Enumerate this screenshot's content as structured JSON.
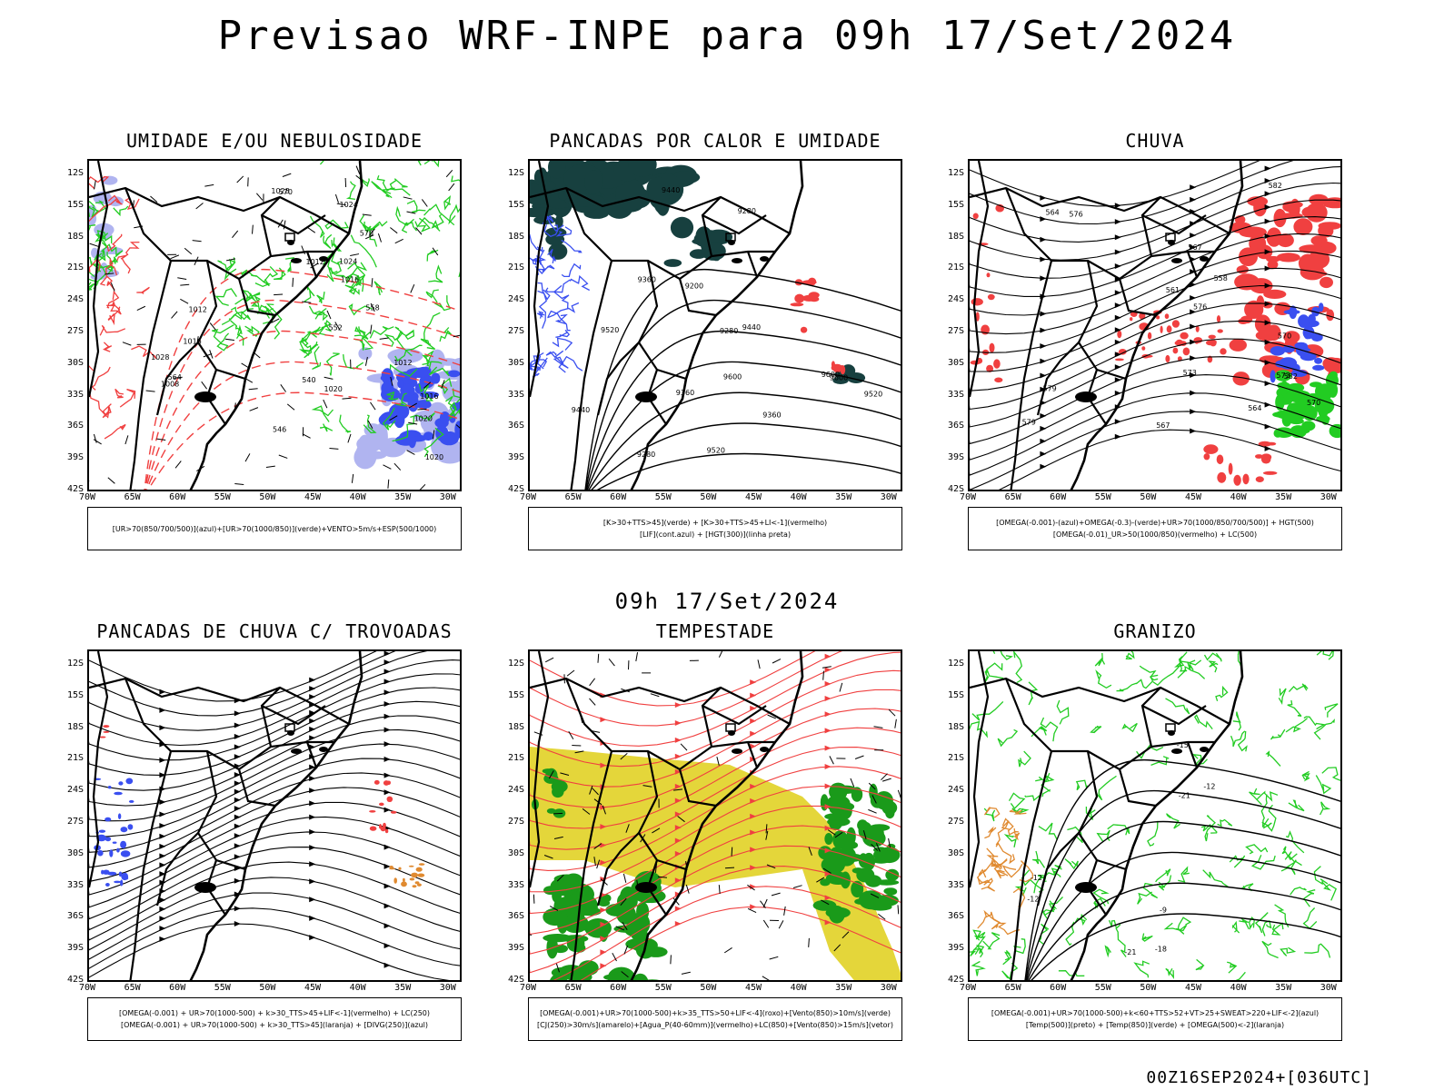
{
  "title": "Previsao WRF-INPE  para 09h 17/Set/2024",
  "subtitle_time": "09h 17/Set/2024",
  "run_stamp": "00Z16SEP2024+[036UTC]",
  "axes": {
    "lat_labels": [
      "12S",
      "15S",
      "18S",
      "21S",
      "24S",
      "27S",
      "30S",
      "33S",
      "36S",
      "39S",
      "42S"
    ],
    "lon_labels": [
      "70W",
      "65W",
      "60W",
      "55W",
      "50W",
      "45W",
      "40W",
      "35W",
      "30W"
    ]
  },
  "colors": {
    "blue": "#3a4ff0",
    "lightblue": "#b0b4f0",
    "green": "#22cc22",
    "red": "#f04040",
    "darkteal": "#17403f",
    "yellow": "#e4d63a",
    "orange": "#e08a30",
    "darkgreen": "#1a9a1a"
  },
  "panels": [
    {
      "title": "UMIDADE E/OU NEBULOSIDADE",
      "legend": [
        "[UR>70(850/700/500)](azul)+[UR>70(1000/850)](verde)+VENTO>5m/s+ESP(500/1000)"
      ],
      "contour_labels": [
        "1012",
        "1012",
        "1016",
        "1016",
        "1020",
        "1020",
        "1020",
        "1024",
        "1024",
        "1028",
        "1028",
        "1016",
        "1012",
        "1008",
        "570",
        "570",
        "564",
        "558",
        "552",
        "546",
        "540"
      ]
    },
    {
      "title": "PANCADAS POR CALOR E UMIDADE",
      "legend": [
        "[K>30+TTS>45](verde) + [K>30+TTS>45+LI<-1](vermelho)",
        "[LIF](cont.azul) + [HGT(300)](linha preta)"
      ],
      "contour_labels": [
        "9600",
        "9520",
        "9440",
        "9360",
        "9280",
        "9200",
        "9600",
        "9520",
        "9440",
        "9360",
        "9280",
        "9600",
        "9520",
        "9440",
        "9360",
        "9280"
      ]
    },
    {
      "title": "CHUVA",
      "legend": [
        "[OMEGA(-0.001)-(azul)+OMEGA(-0.3)-(verde)+UR>70(1000/850/700/500)] + HGT(500)",
        "[OMEGA(-0.01)_UR>50(1000/850)(vermelho) + LC(500)"
      ],
      "contour_labels": [
        "582",
        "579",
        "576",
        "573",
        "570",
        "567",
        "564",
        "561",
        "558",
        "582",
        "579",
        "576",
        "573",
        "570",
        "567",
        "564"
      ]
    },
    {
      "title": "PANCADAS DE CHUVA C/ TROVOADAS",
      "legend": [
        "[OMEGA(-0.001) + UR>70(1000-500) + k>30_TTS>45+LIF<-1](vermelho) + LC(250)",
        "[OMEGA(-0.001) + UR>70(1000-500) + k>30_TTS>45](laranja) + [DIVG(250)](azul)"
      ],
      "contour_labels": []
    },
    {
      "title": "TEMPESTADE",
      "legend": [
        "[OMEGA(-0.001)+UR>70(1000-500)+k>35_TTS>50+LIF<-4](roxo)+[Vento(850)>10m/s](verde)",
        "[CJ(250)>30m/s](amarelo)+[Agua_P(40-60mm)](vermelho)+LC(850)+[Vento(850)>15m/s](vetor)"
      ],
      "contour_labels": []
    },
    {
      "title": "GRANIZO",
      "legend": [
        "[OMEGA(-0.001)+UR>70(1000-500)+k<60+TTS>52+VT>25+SWEAT>220+LIF<-2](azul)",
        "[Temp(500)](preto) + [Temp(850)](verde) + [OMEGA(500)<-2](laranja)"
      ],
      "contour_labels": [
        "-12",
        "-12",
        "-21",
        "-21",
        "-9",
        "-12",
        "-15",
        "-18"
      ]
    }
  ]
}
